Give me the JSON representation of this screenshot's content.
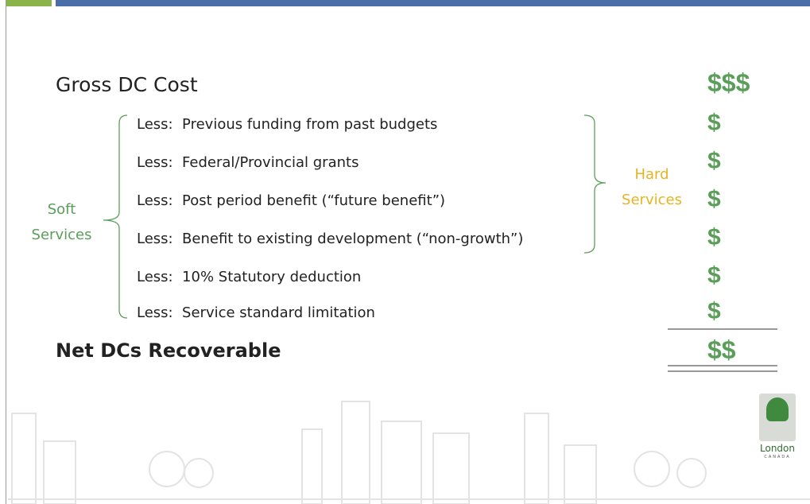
{
  "gross_cost": {
    "label": "Gross DC Cost",
    "amount": "$$$"
  },
  "deductions": [
    {
      "label": "Less:  Previous funding from past budgets",
      "amount": "$"
    },
    {
      "label": "Less:  Federal/Provincial grants",
      "amount": "$"
    },
    {
      "label": "Less:  Post period benefit (“future benefit”)",
      "amount": "$"
    },
    {
      "label": "Less:  Benefit to existing development (“non-growth”)",
      "amount": "$"
    },
    {
      "label": "Less:  10% Statutory deduction",
      "amount": "$"
    },
    {
      "label": "Less:  Service standard limitation",
      "amount": "$"
    }
  ],
  "net": {
    "label": "Net DCs Recoverable",
    "amount": "$$"
  },
  "soft_services": "Soft Services",
  "hard_services": "Hard Services",
  "logo": {
    "name": "London",
    "country": "CANADA"
  }
}
